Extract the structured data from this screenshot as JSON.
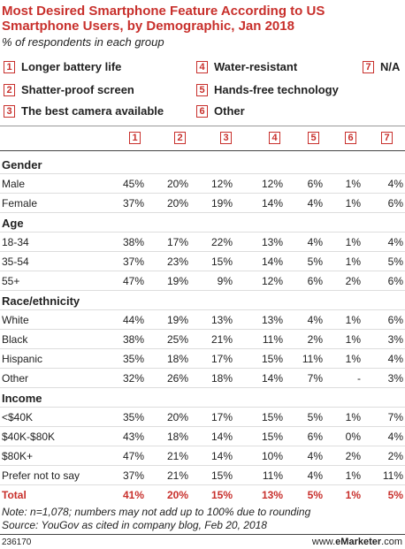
{
  "header": {
    "title": "Most Desired Smartphone Feature According to US Smartphone Users, by Demographic, Jan 2018",
    "subtitle": "% of respondents in each group"
  },
  "legend": [
    {
      "num": "1",
      "label": "Longer battery life"
    },
    {
      "num": "2",
      "label": "Shatter-proof screen"
    },
    {
      "num": "3",
      "label": "The best camera available"
    },
    {
      "num": "4",
      "label": "Water-resistant"
    },
    {
      "num": "5",
      "label": "Hands-free technology"
    },
    {
      "num": "6",
      "label": "Other"
    },
    {
      "num": "7",
      "label": "N/A"
    }
  ],
  "table": {
    "columns": [
      "1",
      "2",
      "3",
      "4",
      "5",
      "6",
      "7"
    ],
    "groups": [
      {
        "name": "Gender",
        "rows": [
          {
            "label": "Male",
            "values": [
              "45%",
              "20%",
              "12%",
              "12%",
              "6%",
              "1%",
              "4%"
            ]
          },
          {
            "label": "Female",
            "values": [
              "37%",
              "20%",
              "19%",
              "14%",
              "4%",
              "1%",
              "6%"
            ]
          }
        ]
      },
      {
        "name": "Age",
        "rows": [
          {
            "label": "18-34",
            "values": [
              "38%",
              "17%",
              "22%",
              "13%",
              "4%",
              "1%",
              "4%"
            ]
          },
          {
            "label": "35-54",
            "values": [
              "37%",
              "23%",
              "15%",
              "14%",
              "5%",
              "1%",
              "5%"
            ]
          },
          {
            "label": "55+",
            "values": [
              "47%",
              "19%",
              "9%",
              "12%",
              "6%",
              "2%",
              "6%"
            ]
          }
        ]
      },
      {
        "name": "Race/ethnicity",
        "rows": [
          {
            "label": "White",
            "values": [
              "44%",
              "19%",
              "13%",
              "13%",
              "4%",
              "1%",
              "6%"
            ]
          },
          {
            "label": "Black",
            "values": [
              "38%",
              "25%",
              "21%",
              "11%",
              "2%",
              "1%",
              "3%"
            ]
          },
          {
            "label": "Hispanic",
            "values": [
              "35%",
              "18%",
              "17%",
              "15%",
              "11%",
              "1%",
              "4%"
            ]
          },
          {
            "label": "Other",
            "values": [
              "32%",
              "26%",
              "18%",
              "14%",
              "7%",
              "-",
              "3%"
            ]
          }
        ]
      },
      {
        "name": "Income",
        "rows": [
          {
            "label": "<$40K",
            "values": [
              "35%",
              "20%",
              "17%",
              "15%",
              "5%",
              "1%",
              "7%"
            ]
          },
          {
            "label": "$40K-$80K",
            "values": [
              "43%",
              "18%",
              "14%",
              "15%",
              "6%",
              "0%",
              "4%"
            ]
          },
          {
            "label": "$80K+",
            "values": [
              "47%",
              "21%",
              "14%",
              "10%",
              "4%",
              "2%",
              "2%"
            ]
          },
          {
            "label": "Prefer not to say",
            "values": [
              "37%",
              "21%",
              "15%",
              "11%",
              "4%",
              "1%",
              "11%"
            ]
          }
        ]
      }
    ],
    "total": {
      "label": "Total",
      "values": [
        "41%",
        "20%",
        "15%",
        "13%",
        "5%",
        "1%",
        "5%"
      ]
    }
  },
  "footer": {
    "notes": [
      "Note: n=1,078; numbers may not add up to 100% due to rounding",
      "Source: YouGov as cited in company blog, Feb 20, 2018"
    ],
    "id": "236170",
    "brand": [
      "www.",
      "eMarketer",
      ".com"
    ]
  }
}
